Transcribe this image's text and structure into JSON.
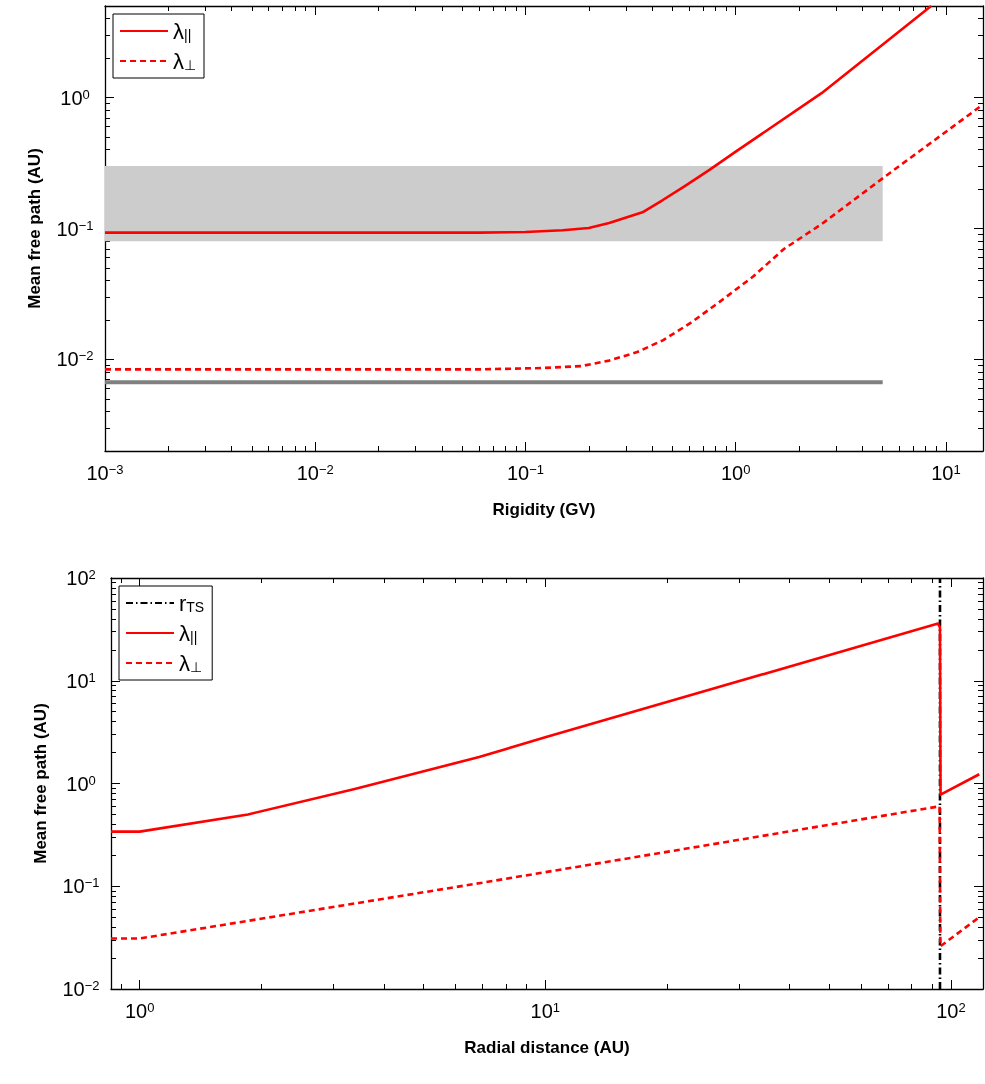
{
  "chart_data": [
    {
      "type": "line",
      "xlabel": "Rigidity (GV)",
      "ylabel": "Mean free path (AU)",
      "log": "xy",
      "legend": "top left",
      "xlim": [
        0.001,
        15
      ],
      "ylim": [
        0.002,
        5
      ],
      "xticks": [
        {
          "value": 0.001,
          "label": "10$^{−3}$"
        },
        {
          "value": 0.01,
          "label": "10$^{−2}$"
        },
        {
          "value": 0.1,
          "label": "10$^{−1}$"
        },
        {
          "value": 1,
          "label": "10$^{0}$"
        },
        {
          "value": 10,
          "label": "10$^{1}$"
        }
      ],
      "yticks": [
        {
          "value": 0.01,
          "label": "10$^{−2}$"
        },
        {
          "value": 0.1,
          "label": "10$^{−1}$"
        },
        {
          "value": 1,
          "label": "10$^{0}$"
        }
      ],
      "series": [
        {
          "type": "area",
          "color": "#cccccc",
          "x": [
            0.001,
            5
          ],
          "values": [
            null,
            null
          ],
          "lower": [
            0.08,
            0.08
          ],
          "upper": [
            0.3,
            0.3
          ]
        },
        {
          "color": "#808080",
          "line_style": "solid",
          "x": [
            0.001,
            5
          ],
          "values": [
            0.0067,
            0.0067
          ]
        },
        {
          "name": "λ$_{||}$",
          "color": "#ff0000",
          "line_style": "solid",
          "x": [
            0.001,
            0.06,
            0.1,
            0.15,
            0.2,
            0.25,
            0.36,
            0.45,
            0.57,
            0.75,
            1,
            2.56,
            8.5
          ],
          "values": [
            0.093,
            0.093,
            0.094,
            0.097,
            0.101,
            0.11,
            0.133,
            0.165,
            0.21,
            0.28,
            0.386,
            1.08,
            5
          ]
        },
        {
          "name": "λ$_{⊥}$",
          "color": "#ff0000",
          "line_style": "dashed",
          "x": [
            0.001,
            0.06,
            0.12,
            0.184,
            0.25,
            0.34,
            0.45,
            0.61,
            0.85,
            1.21,
            1.7,
            2.56,
            5.45,
            14.5
          ],
          "values": [
            0.0084,
            0.0084,
            0.0086,
            0.0089,
            0.0098,
            0.0114,
            0.014,
            0.019,
            0.028,
            0.043,
            0.07,
            0.108,
            0.268,
            0.85
          ]
        }
      ]
    },
    {
      "type": "line",
      "xlabel": "Radial distance (AU)",
      "ylabel": "Mean free path (AU)",
      "log": "xy",
      "legend": "top left",
      "xlim": [
        0.85,
        120
      ],
      "ylim": [
        0.01,
        100
      ],
      "xticks": [
        {
          "value": 1,
          "label": "10$^{0}$"
        },
        {
          "value": 10,
          "label": "10$^{1}$"
        },
        {
          "value": 100,
          "label": "10$^{2}$"
        }
      ],
      "yticks": [
        {
          "value": 0.01,
          "label": "10$^{−2}$"
        },
        {
          "value": 0.1,
          "label": "10$^{−1}$"
        },
        {
          "value": 1,
          "label": "10$^{0}$"
        },
        {
          "value": 10,
          "label": "10$^{1}$"
        },
        {
          "value": 100,
          "label": "10$^{2}$"
        }
      ],
      "series": [
        {
          "name": "r$_{TS}$",
          "color": "#000000",
          "line_style": "dashdot",
          "x": [
            94,
            94
          ],
          "values": [
            0.01,
            100
          ]
        },
        {
          "name": "λ$_{||}$",
          "color": "#ff0000",
          "line_style": "solid",
          "x": [
            0.85,
            1,
            1.85,
            3.39,
            6.87,
            10,
            93,
            94,
            94.3,
            117.5
          ],
          "values": [
            0.34,
            0.34,
            0.5,
            0.885,
            1.81,
            2.82,
            36,
            33,
            0.78,
            1.23
          ]
        },
        {
          "name": "λ$_{⊥}$",
          "color": "#ff0000",
          "line_style": "dashed",
          "x": [
            0.85,
            1,
            6.87,
            93.8,
            94.2,
            117.5
          ],
          "values": [
            0.031,
            0.031,
            0.107,
            0.6,
            0.026,
            0.05
          ]
        }
      ]
    }
  ]
}
